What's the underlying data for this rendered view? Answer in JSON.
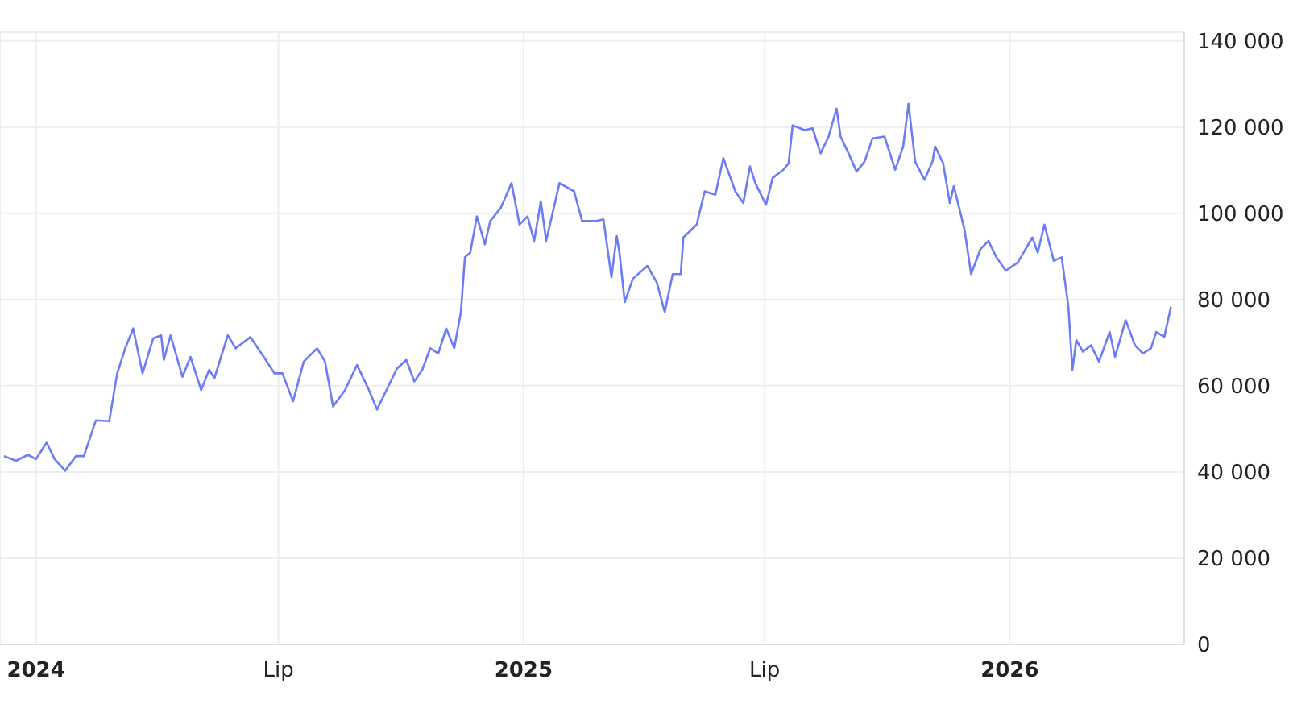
{
  "chart_data": {
    "type": "line",
    "x": [
      "2023-12-08",
      "2023-12-17",
      "2023-12-26",
      "2024-01-01",
      "2024-01-09",
      "2024-01-15",
      "2024-01-23",
      "2024-01-31",
      "2024-02-06",
      "2024-02-15",
      "2024-02-25",
      "2024-03-02",
      "2024-03-08",
      "2024-03-14",
      "2024-03-21",
      "2024-03-29",
      "2024-04-04",
      "2024-04-06",
      "2024-04-11",
      "2024-04-20",
      "2024-04-26",
      "2024-05-04",
      "2024-05-10",
      "2024-05-14",
      "2024-05-24",
      "2024-05-30",
      "2024-06-10",
      "2024-06-20",
      "2024-06-28",
      "2024-07-04",
      "2024-07-12",
      "2024-07-20",
      "2024-07-30",
      "2024-08-05",
      "2024-08-11",
      "2024-08-20",
      "2024-08-29",
      "2024-09-07",
      "2024-09-13",
      "2024-09-19",
      "2024-09-28",
      "2024-10-05",
      "2024-10-11",
      "2024-10-17",
      "2024-10-23",
      "2024-10-29",
      "2024-11-04",
      "2024-11-10",
      "2024-11-15",
      "2024-11-18",
      "2024-11-22",
      "2024-11-27",
      "2024-12-03",
      "2024-12-07",
      "2024-12-15",
      "2024-12-23",
      "2024-12-29",
      "2025-01-04",
      "2025-01-09",
      "2025-01-14",
      "2025-01-18",
      "2025-01-28",
      "2025-02-08",
      "2025-02-14",
      "2025-02-24",
      "2025-03-02",
      "2025-03-08",
      "2025-03-12",
      "2025-03-14",
      "2025-03-18",
      "2025-03-24",
      "2025-04-04",
      "2025-04-11",
      "2025-04-17",
      "2025-04-23",
      "2025-04-29",
      "2025-05-01",
      "2025-05-11",
      "2025-05-17",
      "2025-05-25",
      "2025-05-31",
      "2025-06-09",
      "2025-06-15",
      "2025-06-20",
      "2025-06-24",
      "2025-07-02",
      "2025-07-07",
      "2025-07-15",
      "2025-07-19",
      "2025-07-22",
      "2025-07-31",
      "2025-08-06",
      "2025-08-12",
      "2025-08-18",
      "2025-08-24",
      "2025-08-27",
      "2025-09-02",
      "2025-09-08",
      "2025-09-14",
      "2025-09-20",
      "2025-09-29",
      "2025-10-07",
      "2025-10-13",
      "2025-10-17",
      "2025-10-22",
      "2025-10-29",
      "2025-11-04",
      "2025-11-06",
      "2025-11-12",
      "2025-11-17",
      "2025-11-20",
      "2025-11-28",
      "2025-12-03",
      "2025-12-10",
      "2025-12-16",
      "2025-12-22",
      "2025-12-29",
      "2026-01-07",
      "2026-01-18",
      "2026-01-22",
      "2026-01-27",
      "2026-02-03",
      "2026-02-09",
      "2026-02-14",
      "2026-02-17",
      "2026-02-20",
      "2026-02-25",
      "2026-03-03",
      "2026-03-09",
      "2026-03-17",
      "2026-03-21",
      "2026-03-29",
      "2026-04-05",
      "2026-04-11",
      "2026-04-17",
      "2026-04-21",
      "2026-04-27",
      "2026-05-02"
    ],
    "series": [
      {
        "color": "#6b7cf5",
        "values": [
          43700,
          42600,
          44000,
          43000,
          46800,
          43000,
          40300,
          43700,
          43700,
          52000,
          51800,
          62900,
          68700,
          73300,
          62900,
          71000,
          71700,
          66000,
          71700,
          62100,
          66700,
          59000,
          63700,
          61800,
          71700,
          68700,
          71300,
          66700,
          62900,
          62900,
          56400,
          65600,
          68700,
          65600,
          55200,
          59000,
          64800,
          59000,
          54500,
          58300,
          64000,
          66000,
          61000,
          63700,
          68700,
          67500,
          73300,
          68700,
          77100,
          89800,
          90900,
          99300,
          92800,
          98200,
          101300,
          107000,
          97400,
          99300,
          93600,
          102800,
          93600,
          107000,
          105100,
          98200,
          98200,
          98600,
          85200,
          94700,
          90900,
          79400,
          84800,
          87800,
          84000,
          77100,
          85900,
          85900,
          94400,
          97400,
          105100,
          104300,
          112800,
          105100,
          102400,
          110900,
          107000,
          102000,
          108200,
          110100,
          111600,
          120400,
          119300,
          119700,
          113900,
          117800,
          124300,
          117800,
          113900,
          109700,
          112000,
          117400,
          117800,
          110100,
          115500,
          125400,
          112000,
          107800,
          112000,
          115500,
          111600,
          102400,
          106300,
          96300,
          85900,
          91700,
          93600,
          89800,
          86700,
          88600,
          94400,
          90900,
          97400,
          89000,
          89800,
          78300,
          63700,
          70600,
          67900,
          69400,
          65600,
          72500,
          66700,
          75200,
          69400,
          67500,
          68700,
          72500,
          71300,
          78300
        ]
      }
    ],
    "xlim": [
      "2023-12-05",
      "2026-05-12"
    ],
    "xticks": [
      {
        "value": "2024-01-01",
        "label": "2024"
      },
      {
        "value": "2024-07-01",
        "label": "Lip"
      },
      {
        "value": "2025-01-01",
        "label": "2025"
      },
      {
        "value": "2025-07-01",
        "label": "Lip"
      },
      {
        "value": "2026-01-01",
        "label": "2026"
      }
    ],
    "ylim": [
      0,
      142000
    ],
    "yticks": [
      {
        "value": 0,
        "label": "0"
      },
      {
        "value": 20000,
        "label": "20 000"
      },
      {
        "value": 40000,
        "label": "40 000"
      },
      {
        "value": 60000,
        "label": "60 000"
      },
      {
        "value": 80000,
        "label": "80 000"
      },
      {
        "value": 100000,
        "label": "100 000"
      },
      {
        "value": 120000,
        "label": "120 000"
      },
      {
        "value": 140000,
        "label": "140 000"
      }
    ],
    "grid": true,
    "legend": false,
    "marker": "none",
    "line_style": "solid"
  }
}
